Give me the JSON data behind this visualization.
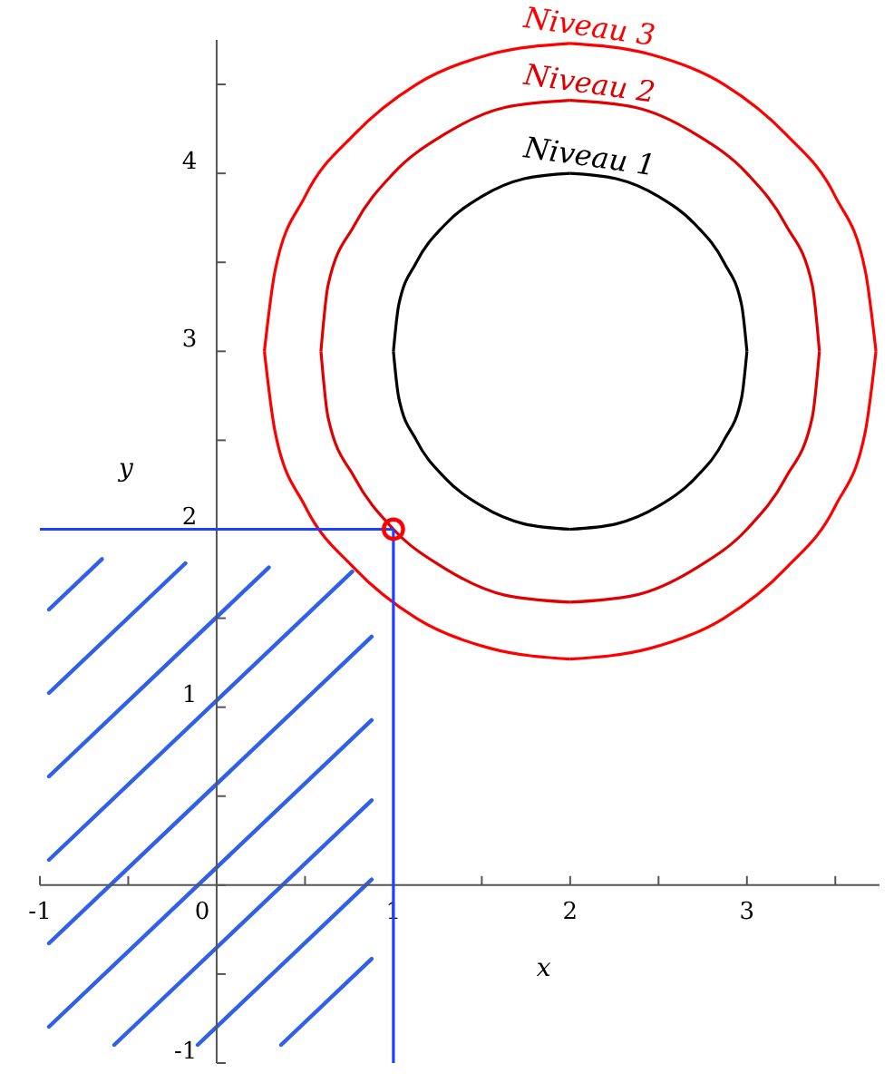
{
  "chart_data": {
    "type": "line",
    "xlabel": "x",
    "ylabel": "y",
    "xlim": [
      -1,
      3.75
    ],
    "ylim": [
      -1,
      4.75
    ],
    "xticks": [
      -1,
      {
        "value": -0.5,
        "label": null
      },
      0,
      {
        "value": 0.5,
        "label": null
      },
      1,
      {
        "value": 1.5,
        "label": null
      },
      2,
      {
        "value": 2.5,
        "label": null
      },
      3,
      {
        "value": 3.5,
        "label": null
      }
    ],
    "yticks": [
      -1,
      {
        "value": -0.5,
        "label": null
      },
      {
        "value": 0,
        "label": null
      },
      {
        "value": 0.5,
        "label": null
      },
      1,
      {
        "value": 1.5,
        "label": null
      },
      2,
      {
        "value": 2.5,
        "label": null
      },
      3,
      {
        "value": 3.5,
        "label": null
      },
      4,
      {
        "value": 4.5,
        "label": null
      }
    ],
    "marker": "none",
    "line_style": "solid",
    "series": [
      {
        "name": "Niveau 3",
        "color": "#ff0000",
        "x": [
          0.27,
          0.33,
          0.5,
          0.78,
          1.13,
          1.55,
          2
        ],
        "values": [
          3,
          3.45,
          3.87,
          4.22,
          4.5,
          4.67,
          4.73
        ]
      },
      {
        "color": "#ff0000",
        "x": [
          2,
          2.45,
          2.87,
          3.22,
          3.5,
          3.67,
          3.73
        ],
        "values": [
          4.73,
          4.67,
          4.5,
          4.22,
          3.87,
          3.45,
          3
        ]
      },
      {
        "color": "#ff0000",
        "x": [
          0.27,
          0.33,
          0.5,
          0.78,
          1.13,
          1.55,
          2
        ],
        "values": [
          3,
          2.55,
          2.13,
          1.78,
          1.5,
          1.33,
          1.27
        ]
      },
      {
        "color": "#ff0000",
        "x": [
          2,
          2.45,
          2.87,
          3.22,
          3.5,
          3.67,
          3.73
        ],
        "values": [
          1.27,
          1.33,
          1.5,
          1.78,
          2.13,
          2.55,
          3
        ]
      },
      {
        "name": "Niveau 2",
        "color": "#e00000",
        "x": [
          0.59,
          0.63,
          0.78,
          1,
          1.29,
          1.63,
          2
        ],
        "values": [
          3,
          3.37,
          3.71,
          4,
          4.22,
          4.37,
          4.41
        ]
      },
      {
        "color": "#e00000",
        "x": [
          2,
          2.37,
          2.71,
          3,
          3.22,
          3.37,
          3.41
        ],
        "values": [
          4.41,
          4.37,
          4.22,
          4,
          3.71,
          3.37,
          3
        ]
      },
      {
        "color": "#e00000",
        "x": [
          0.59,
          0.63,
          0.78,
          1,
          1.29,
          1.63,
          2
        ],
        "values": [
          3,
          2.63,
          2.29,
          2,
          1.78,
          1.63,
          1.59
        ]
      },
      {
        "color": "#e00000",
        "x": [
          2,
          2.37,
          2.71,
          3,
          3.22,
          3.37,
          3.41
        ],
        "values": [
          1.59,
          1.63,
          1.78,
          2,
          2.29,
          2.63,
          3
        ]
      },
      {
        "name": "Niveau 1",
        "color": "#000000",
        "x": [
          1,
          1.03,
          1.13,
          1.29,
          1.5,
          1.74,
          2
        ],
        "values": [
          3,
          3.26,
          3.5,
          3.71,
          3.87,
          3.97,
          4
        ]
      },
      {
        "color": "#000000",
        "x": [
          2,
          2.26,
          2.5,
          2.71,
          2.87,
          2.97,
          3
        ],
        "values": [
          4,
          3.97,
          3.87,
          3.71,
          3.5,
          3.26,
          3
        ]
      },
      {
        "color": "#000000",
        "x": [
          1,
          1.03,
          1.13,
          1.29,
          1.5,
          1.74,
          2
        ],
        "values": [
          3,
          2.74,
          2.5,
          2.29,
          2.13,
          2.03,
          2
        ]
      },
      {
        "color": "#000000",
        "x": [
          2,
          2.26,
          2.5,
          2.71,
          2.87,
          2.97,
          3
        ],
        "values": [
          2,
          2.03,
          2.13,
          2.29,
          2.5,
          2.74,
          3
        ]
      },
      {
        "color": "#2040ff",
        "x": [
          1,
          1
        ],
        "values": [
          -1,
          2
        ]
      },
      {
        "color": "#2040ff",
        "x": [
          -1,
          1
        ],
        "values": [
          2,
          2
        ]
      },
      {
        "type": "scatter",
        "marker": "circle",
        "color": "#ff0000",
        "x": [
          1
        ],
        "values": [
          2
        ]
      }
    ]
  }
}
